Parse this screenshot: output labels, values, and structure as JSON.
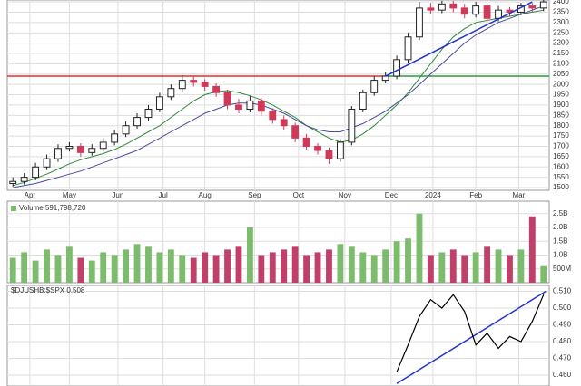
{
  "chart_data": {
    "type": "candlestick",
    "xlim": [
      -0.5,
      47.5
    ],
    "xticks": [
      {
        "value": 1.5,
        "label": "Apr"
      },
      {
        "value": 5,
        "label": "May"
      },
      {
        "value": 9.3,
        "label": "Jun"
      },
      {
        "value": 13.3,
        "label": "Jul"
      },
      {
        "value": 17,
        "label": "Aug"
      },
      {
        "value": 21.4,
        "label": "Sep"
      },
      {
        "value": 25.3,
        "label": "Oct"
      },
      {
        "value": 29.4,
        "label": "Nov"
      },
      {
        "value": 33.5,
        "label": "Dec"
      },
      {
        "value": 37.2,
        "label": "2024"
      },
      {
        "value": 41,
        "label": "Feb"
      },
      {
        "value": 44.8,
        "label": "Mar"
      }
    ],
    "ylim": [
      1487,
      2409
    ],
    "yticks": [
      1500,
      1550,
      1600,
      1650,
      1700,
      1750,
      1800,
      1850,
      1900,
      1950,
      2000,
      2050,
      2100,
      2150,
      2200,
      2250,
      2300,
      2350,
      2400
    ],
    "grid": true,
    "up_color": "#222222",
    "down_color": "#d03a5a",
    "open": [
      1520,
      1530,
      1550,
      1600,
      1640,
      1690,
      1700,
      1670,
      1690,
      1720,
      1760,
      1800,
      1840,
      1880,
      1940,
      1980,
      2020,
      2010,
      1990,
      1960,
      1900,
      1880,
      1920,
      1870,
      1830,
      1800,
      1740,
      1700,
      1680,
      1640,
      1720,
      1880,
      1960,
      2020,
      2040,
      2120,
      2230,
      2370,
      2360,
      2390,
      2370,
      2340,
      2380,
      2320,
      2360,
      2350,
      2380,
      2370
    ],
    "high": [
      1550,
      1570,
      1620,
      1660,
      1710,
      1720,
      1715,
      1710,
      1740,
      1780,
      1820,
      1860,
      1900,
      1960,
      2000,
      2045,
      2040,
      2025,
      2005,
      1975,
      1930,
      1945,
      1935,
      1885,
      1850,
      1815,
      1760,
      1715,
      1695,
      1735,
      1895,
      1975,
      2040,
      2060,
      2140,
      2250,
      2400,
      2395,
      2405,
      2405,
      2390,
      2400,
      2395,
      2380,
      2375,
      2395,
      2395,
      2415
    ],
    "low": [
      1505,
      1515,
      1535,
      1585,
      1625,
      1675,
      1650,
      1655,
      1675,
      1705,
      1745,
      1785,
      1825,
      1865,
      1925,
      1965,
      1990,
      1970,
      1940,
      1880,
      1860,
      1865,
      1850,
      1810,
      1780,
      1720,
      1680,
      1660,
      1615,
      1625,
      1705,
      1865,
      1945,
      2005,
      2025,
      2105,
      2215,
      2340,
      2345,
      2350,
      2320,
      2325,
      2300,
      2305,
      2330,
      2335,
      2350,
      2355
    ],
    "close": [
      1530,
      1550,
      1600,
      1640,
      1690,
      1700,
      1670,
      1690,
      1720,
      1760,
      1800,
      1840,
      1880,
      1940,
      1980,
      2020,
      2010,
      1990,
      1960,
      1900,
      1880,
      1920,
      1870,
      1830,
      1800,
      1740,
      1700,
      1680,
      1640,
      1720,
      1880,
      1960,
      2020,
      2040,
      2120,
      2230,
      2370,
      2360,
      2390,
      2370,
      2340,
      2380,
      2320,
      2360,
      2350,
      2380,
      2370,
      2400
    ],
    "series": [
      {
        "color": "#2e8b3a",
        "values": [
          1510,
          1525,
          1545,
          1565,
          1590,
          1615,
          1635,
          1650,
          1665,
          1685,
          1710,
          1740,
          1770,
          1800,
          1840,
          1880,
          1920,
          1950,
          1965,
          1970,
          1960,
          1945,
          1925,
          1900,
          1870,
          1840,
          1800,
          1770,
          1740,
          1720,
          1730,
          1760,
          1800,
          1850,
          1900,
          1960,
          2030,
          2100,
          2170,
          2230,
          2270,
          2300,
          2310,
          2320,
          2330,
          2340,
          2350,
          2360
        ]
      },
      {
        "color": "#4a4aa0",
        "values": [
          1500,
          1510,
          1520,
          1535,
          1550,
          1565,
          1580,
          1600,
          1620,
          1640,
          1660,
          1680,
          1710,
          1740,
          1770,
          1800,
          1830,
          1860,
          1880,
          1900,
          1910,
          1910,
          1900,
          1880,
          1860,
          1830,
          1800,
          1780,
          1770,
          1770,
          1790,
          1810,
          1840,
          1870,
          1910,
          1950,
          2000,
          2050,
          2100,
          2150,
          2200,
          2240,
          2270,
          2300,
          2320,
          2340,
          2360,
          2380
        ]
      }
    ],
    "level": 2040,
    "level_colors": [
      "#e0302c",
      "#2e9a3a"
    ],
    "trend_color": "#2233cc",
    "volume": {
      "label": "Volume 591,798,720",
      "ylim": [
        0,
        2.95
      ],
      "yticks": [
        {
          "value": 0.5,
          "label": "500M"
        },
        {
          "value": 1.0,
          "label": "1.0B"
        },
        {
          "value": 1.5,
          "label": "1.5B"
        },
        {
          "value": 2.0,
          "label": "2.0B"
        },
        {
          "value": 2.5,
          "label": "2.5B"
        }
      ],
      "up_color": "#7cbc6c",
      "down_color": "#c0406a",
      "values": [
        0.9,
        1.1,
        0.8,
        1.2,
        1.0,
        1.3,
        0.9,
        0.8,
        1.1,
        1.0,
        1.2,
        1.4,
        1.3,
        1.1,
        1.2,
        1.0,
        0.9,
        1.1,
        1.0,
        1.2,
        1.3,
        2.0,
        1.0,
        1.1,
        1.2,
        1.3,
        1.0,
        1.1,
        1.2,
        1.4,
        1.3,
        1.1,
        1.0,
        1.2,
        1.5,
        1.6,
        2.5,
        1.0,
        1.1,
        1.2,
        1.0,
        1.1,
        1.3,
        1.2,
        1.0,
        1.2,
        2.4,
        0.6
      ]
    },
    "ratio": {
      "label": "$DJUSHB:$SPX 0.508",
      "color": "#000000",
      "ylim": [
        0.4535,
        0.5135
      ],
      "yticks": [
        {
          "value": 0.51,
          "label": "0.510"
        },
        {
          "value": 0.5,
          "label": "0.500"
        },
        {
          "value": 0.49,
          "label": "0.490"
        },
        {
          "value": 0.48,
          "label": "0.480"
        },
        {
          "value": 0.47,
          "label": "0.470"
        },
        {
          "value": 0.46,
          "label": "0.460"
        }
      ],
      "values": [
        null,
        null,
        null,
        null,
        null,
        null,
        null,
        null,
        null,
        null,
        null,
        null,
        null,
        null,
        null,
        null,
        null,
        null,
        null,
        null,
        null,
        null,
        null,
        null,
        null,
        null,
        null,
        null,
        null,
        null,
        null,
        null,
        null,
        null,
        0.462,
        0.478,
        0.495,
        0.505,
        0.5,
        0.508,
        0.498,
        0.478,
        0.485,
        0.476,
        0.483,
        0.48,
        0.492,
        0.508
      ]
    }
  }
}
